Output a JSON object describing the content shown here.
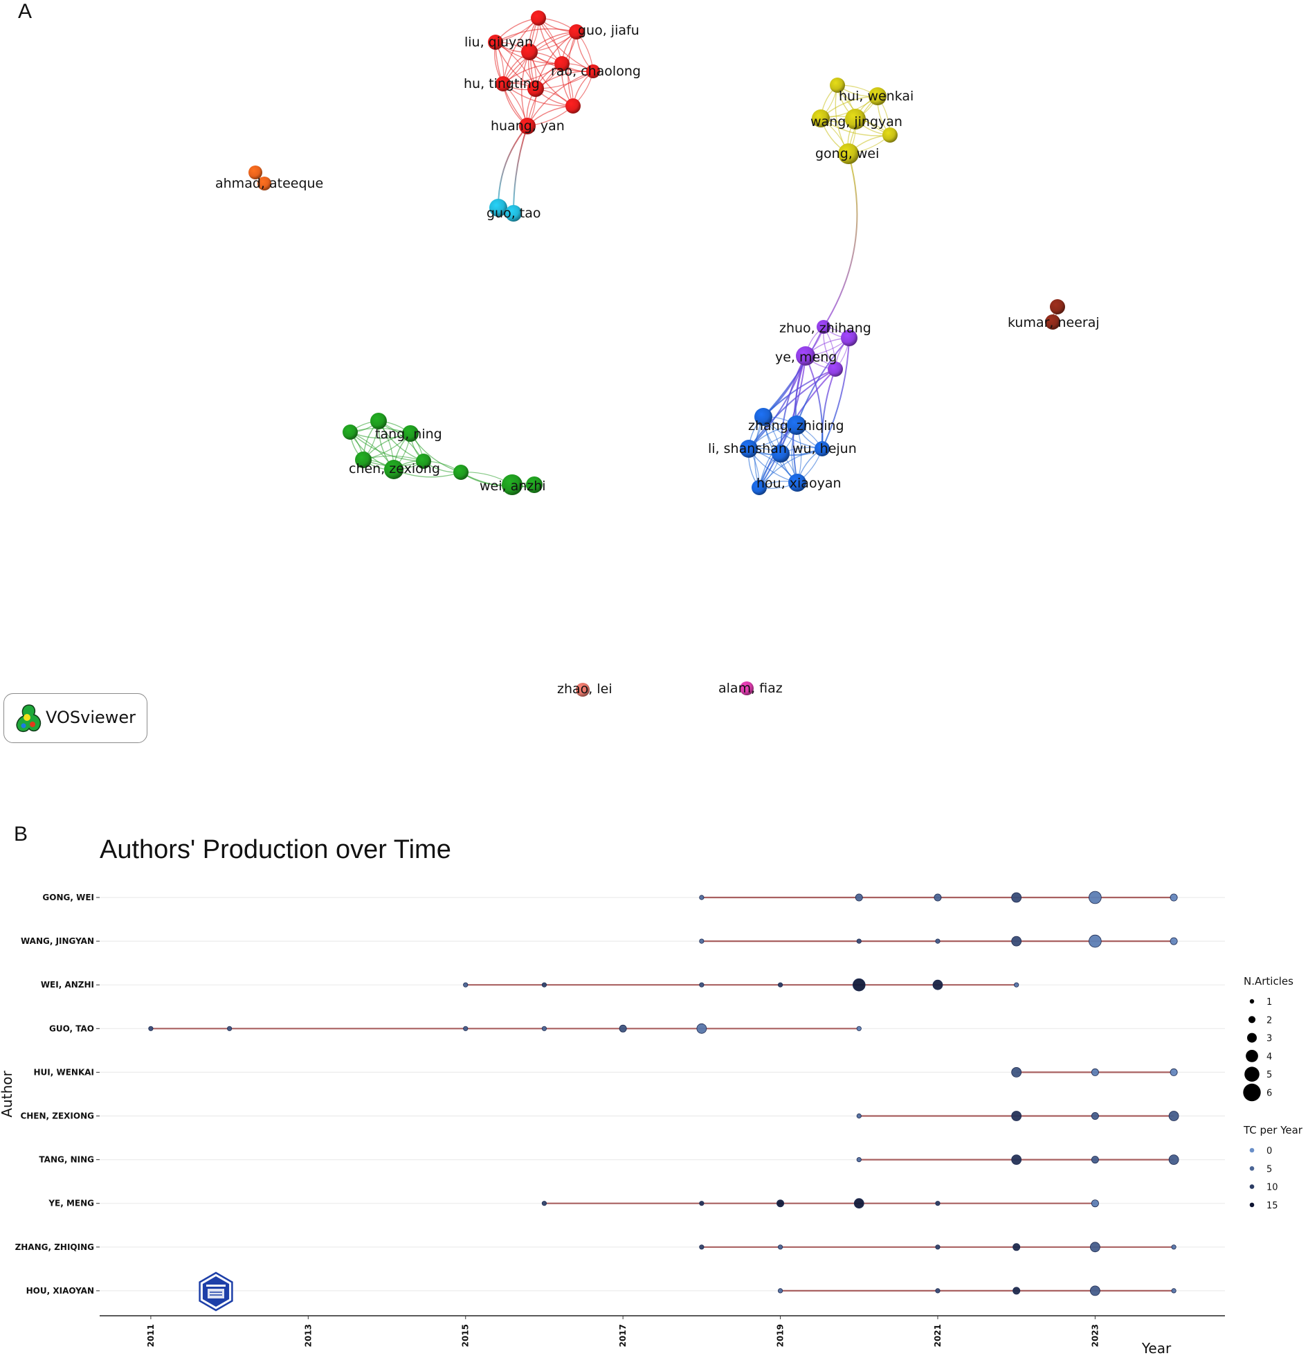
{
  "panel_a_label": "A",
  "panel_b_label": "B",
  "vosviewer_badge": {
    "label": "VOSviewer",
    "icon": "vosviewer-logo-icon"
  },
  "bibliometrix_badge": {
    "icon": "bibliometrix-logo-icon"
  },
  "chart_data": [
    {
      "type": "network",
      "title": "",
      "clusters": [
        {
          "color": "#e41c1c",
          "nodes": [
            {
              "id": "r1",
              "label": ""
            },
            {
              "id": "r2",
              "label": "guo, jiafu"
            },
            {
              "id": "r3",
              "label": "liu, qiuyan"
            },
            {
              "id": "r4",
              "label": ""
            },
            {
              "id": "r5",
              "label": "rao, chaolong"
            },
            {
              "id": "r6",
              "label": ""
            },
            {
              "id": "r7",
              "label": "hu, tingting"
            },
            {
              "id": "r8",
              "label": ""
            },
            {
              "id": "r9",
              "label": ""
            },
            {
              "id": "r10",
              "label": "huang, yan"
            }
          ]
        },
        {
          "color": "#e8621c",
          "nodes": [
            {
              "id": "o1",
              "label": ""
            },
            {
              "id": "o2",
              "label": "ahmad, ateeque"
            }
          ]
        },
        {
          "color": "#22b7d8",
          "nodes": [
            {
              "id": "c1",
              "label": ""
            },
            {
              "id": "c2",
              "label": "guo, tao"
            }
          ]
        },
        {
          "color": "#c8c015",
          "nodes": [
            {
              "id": "y1",
              "label": ""
            },
            {
              "id": "y2",
              "label": "hui, wenkai"
            },
            {
              "id": "y3",
              "label": ""
            },
            {
              "id": "y4",
              "label": "wang, jingyan"
            },
            {
              "id": "y5",
              "label": ""
            },
            {
              "id": "y6",
              "label": "gong, wei"
            }
          ]
        },
        {
          "color": "#8e3ee0",
          "nodes": [
            {
              "id": "p1",
              "label": "zhuo, zhihang"
            },
            {
              "id": "p2",
              "label": ""
            },
            {
              "id": "p3",
              "label": "ye, meng"
            },
            {
              "id": "p4",
              "label": ""
            }
          ]
        },
        {
          "color": "#1a63d6",
          "nodes": [
            {
              "id": "b1",
              "label": ""
            },
            {
              "id": "b2",
              "label": "zhang, zhiqing"
            },
            {
              "id": "b3",
              "label": "li, shanshan"
            },
            {
              "id": "b4",
              "label": ""
            },
            {
              "id": "b5",
              "label": "wu, hejun"
            },
            {
              "id": "b6",
              "label": ""
            },
            {
              "id": "b7",
              "label": "hou, xiaoyan"
            }
          ]
        },
        {
          "color": "#1f9a1f",
          "nodes": [
            {
              "id": "g1",
              "label": ""
            },
            {
              "id": "g2",
              "label": ""
            },
            {
              "id": "g3",
              "label": "tang, ning"
            },
            {
              "id": "g4",
              "label": ""
            },
            {
              "id": "g5",
              "label": ""
            },
            {
              "id": "g6",
              "label": "chen, zexiong"
            },
            {
              "id": "g7",
              "label": ""
            },
            {
              "id": "g8",
              "label": ""
            },
            {
              "id": "g9",
              "label": "wei, anzhi"
            }
          ]
        },
        {
          "color": "#8a2a1a",
          "nodes": [
            {
              "id": "k1",
              "label": ""
            },
            {
              "id": "k2",
              "label": "kumar, neeraj"
            }
          ]
        },
        {
          "color": "#e27468",
          "nodes": [
            {
              "id": "z1",
              "label": "zhao, lei"
            }
          ]
        },
        {
          "color": "#d73aa8",
          "nodes": [
            {
              "id": "m1",
              "label": "alam, fiaz"
            }
          ]
        }
      ]
    },
    {
      "type": "scatter",
      "title": "Authors' Production over Time",
      "xlabel": "Year",
      "ylabel": "Author",
      "xlim": [
        2010.35,
        2024.65
      ],
      "x_ticks": [
        2011,
        2013,
        2015,
        2017,
        2019,
        2021,
        2023
      ],
      "grid": true,
      "authors": [
        "GONG, WEI",
        "WANG, JINGYAN",
        "WEI, ANZHI",
        "GUO, TAO",
        "HUI, WENKAI",
        "CHEN, ZEXIONG",
        "TANG, NING",
        "YE, MENG",
        "ZHANG, ZHIQING",
        "HOU, XIAOYAN"
      ],
      "series": [
        {
          "author": "GONG, WEI",
          "points": [
            [
              2018,
              1,
              4
            ],
            [
              2020,
              2,
              5
            ],
            [
              2021,
              2,
              5
            ],
            [
              2022,
              3,
              8
            ],
            [
              2023,
              4,
              2
            ],
            [
              2024,
              2,
              1
            ]
          ]
        },
        {
          "author": "WANG, JINGYAN",
          "points": [
            [
              2018,
              1,
              4
            ],
            [
              2020,
              1,
              8
            ],
            [
              2021,
              1,
              6
            ],
            [
              2022,
              3,
              8
            ],
            [
              2023,
              4,
              2
            ],
            [
              2024,
              2,
              1
            ]
          ]
        },
        {
          "author": "WEI, ANZHI",
          "points": [
            [
              2015,
              1,
              5
            ],
            [
              2016,
              1,
              9
            ],
            [
              2018,
              1,
              7
            ],
            [
              2019,
              1,
              10
            ],
            [
              2020,
              4,
              14
            ],
            [
              2021,
              3,
              13
            ],
            [
              2022,
              1,
              3
            ]
          ]
        },
        {
          "author": "GUO, TAO",
          "points": [
            [
              2011,
              1,
              8
            ],
            [
              2012,
              1,
              7
            ],
            [
              2015,
              1,
              6
            ],
            [
              2016,
              1,
              5
            ],
            [
              2017,
              2,
              7
            ],
            [
              2018,
              3,
              3
            ],
            [
              2020,
              1,
              2
            ]
          ]
        },
        {
          "author": "HUI, WENKAI",
          "points": [
            [
              2022,
              3,
              7
            ],
            [
              2023,
              2,
              2
            ],
            [
              2024,
              2,
              1
            ]
          ]
        },
        {
          "author": "CHEN, ZEXIONG",
          "points": [
            [
              2020,
              1,
              4
            ],
            [
              2022,
              3,
              11
            ],
            [
              2023,
              2,
              6
            ],
            [
              2024,
              3,
              6
            ]
          ]
        },
        {
          "author": "TANG, NING",
          "points": [
            [
              2020,
              1,
              4
            ],
            [
              2022,
              3,
              11
            ],
            [
              2023,
              2,
              6
            ],
            [
              2024,
              3,
              6
            ]
          ]
        },
        {
          "author": "YE, MENG",
          "points": [
            [
              2016,
              1,
              9
            ],
            [
              2018,
              1,
              11
            ],
            [
              2019,
              2,
              14
            ],
            [
              2020,
              3,
              14
            ],
            [
              2021,
              1,
              10
            ],
            [
              2023,
              2,
              2
            ]
          ]
        },
        {
          "author": "ZHANG, ZHIQING",
          "points": [
            [
              2018,
              1,
              9
            ],
            [
              2019,
              1,
              5
            ],
            [
              2021,
              1,
              9
            ],
            [
              2022,
              2,
              12
            ],
            [
              2023,
              3,
              6
            ],
            [
              2024,
              1,
              3
            ]
          ]
        },
        {
          "author": "HOU, XIAOYAN",
          "points": [
            [
              2019,
              1,
              4
            ],
            [
              2021,
              1,
              8
            ],
            [
              2022,
              2,
              12
            ],
            [
              2023,
              3,
              6
            ],
            [
              2024,
              1,
              3
            ]
          ]
        }
      ],
      "point_fields": [
        "year",
        "n_articles",
        "tc_per_year"
      ],
      "legend_size": {
        "title": "N.Articles",
        "values": [
          1,
          2,
          3,
          4,
          5,
          6
        ]
      },
      "legend_color": {
        "title": "TC per Year",
        "values": [
          0,
          5,
          10,
          15
        ]
      },
      "legend_position": "right",
      "line_color": "#a05050",
      "color_low": "#6a8fc8",
      "color_high": "#0c1230"
    }
  ]
}
